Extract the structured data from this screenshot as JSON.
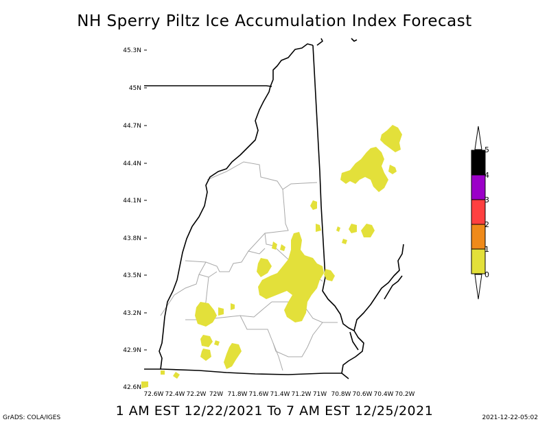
{
  "title": "NH Sperry Piltz Ice Accumulation Index Forecast",
  "subtitle": "1 AM EST 12/22/2021 To 7 AM EST 12/25/2021",
  "credit": "GrADS: COLA/IGES",
  "timestamp": "2021-12-22-05:02",
  "map": {
    "lat_labels": [
      "45.3N",
      "45N",
      "44.7N",
      "44.4N",
      "44.1N",
      "43.8N",
      "43.5N",
      "43.2N",
      "42.9N",
      "42.6N"
    ],
    "lon_labels": [
      "72.6W",
      "72.4W",
      "72.2W",
      "72W",
      "71.8W",
      "71.6W",
      "71.4W",
      "71.2W",
      "71W",
      "70.8W",
      "70.6W",
      "70.4W",
      "70.2W"
    ],
    "forecast_fill_color": "#e3e03a",
    "forecast_index_level": "0-1"
  },
  "colorbar": {
    "labels": [
      "0",
      "1",
      "2",
      "3",
      "4",
      "5"
    ],
    "colors": [
      "#e3e03a",
      "#ef8a1a",
      "#ff4040",
      "#9b00c8",
      "#000000"
    ]
  }
}
